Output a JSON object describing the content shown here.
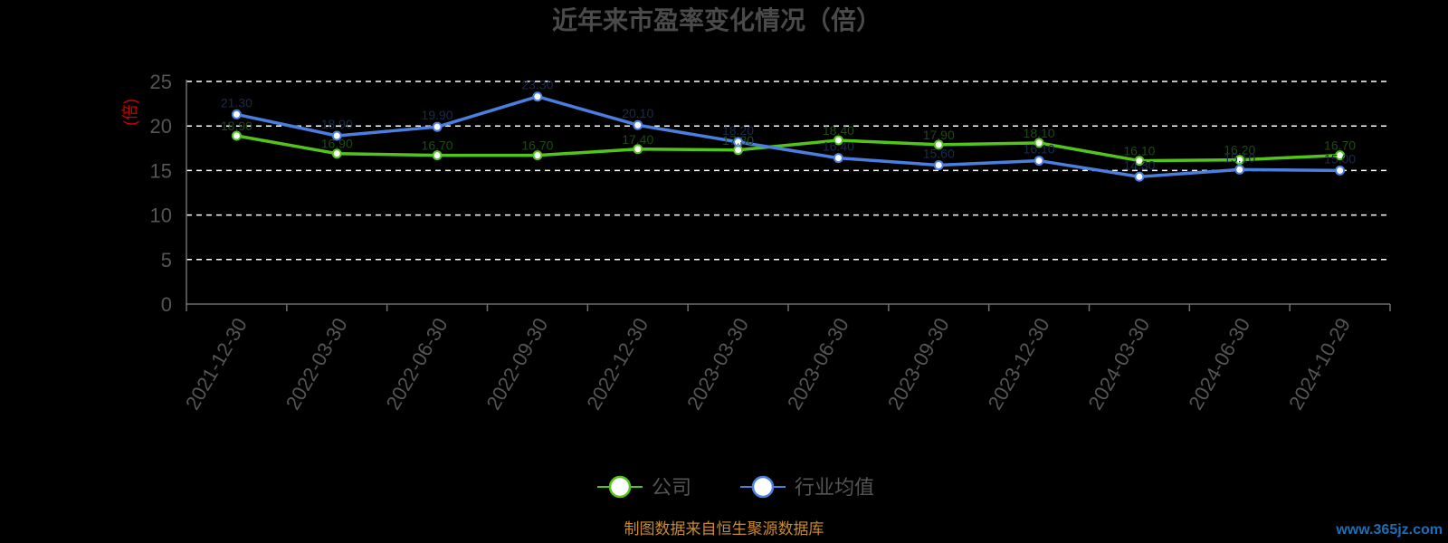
{
  "chart_data": {
    "type": "line",
    "title": "近年来市盈率变化情况（倍）",
    "ylabel": "(倍)",
    "categories": [
      "2021-12-30",
      "2022-03-30",
      "2022-06-30",
      "2022-09-30",
      "2022-12-30",
      "2023-03-30",
      "2023-06-30",
      "2023-09-30",
      "2023-12-30",
      "2024-03-30",
      "2024-06-30",
      "2024-10-29"
    ],
    "ylim": [
      0,
      25
    ],
    "yticks": [
      "0",
      "5",
      "10",
      "15",
      "20",
      "25"
    ],
    "grid": true,
    "legend_position": "bottom",
    "series": [
      {
        "name": "公司",
        "color": "#52c41a",
        "values": [
          18.9,
          16.9,
          16.7,
          16.7,
          17.4,
          17.3,
          18.4,
          17.9,
          18.1,
          16.1,
          16.2,
          16.7
        ]
      },
      {
        "name": "行业均值",
        "color": "#4a7fe0",
        "values": [
          21.3,
          18.9,
          19.9,
          23.3,
          20.1,
          18.2,
          16.4,
          15.6,
          16.1,
          14.3,
          15.1,
          15.0
        ]
      }
    ]
  },
  "footer": {
    "source": "制图数据来自恒生聚源数据库",
    "watermark": "www.365jz.com"
  },
  "colors": {
    "background": "#000000",
    "axis": "#6e6e6e",
    "grid": "#ffffff"
  }
}
